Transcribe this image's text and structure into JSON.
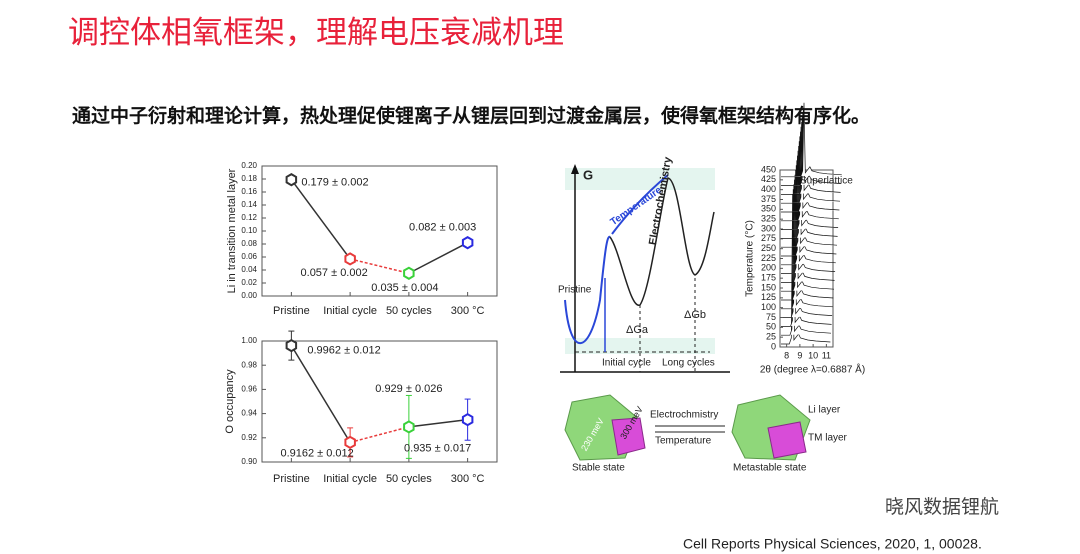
{
  "title": "调控体相氧框架，理解电压衰减机理",
  "subtitle": "通过中子衍射和理论计算，热处理促使锂离子从锂层回到过渡金属层，使得氧框架结构有序化。",
  "chart_data": [
    {
      "type": "line",
      "y_label": "Li in transition metal layer",
      "categories": [
        "Pristine",
        "Initial cycle",
        "50 cycles",
        "300 °C"
      ],
      "values": [
        0.179,
        0.057,
        0.035,
        0.082
      ],
      "errors": [
        0.002,
        0.002,
        0.004,
        0.003
      ],
      "value_labels": [
        "0.179 ± 0.002",
        "0.057 ± 0.002",
        "0.035 ± 0.004",
        "0.082 ± 0.003"
      ],
      "colors": [
        "#333333",
        "#e83b3b",
        "#3ad13a",
        "#2a2ae0"
      ],
      "segment_colors": [
        "#333333",
        "#e83b3b",
        "#333333"
      ],
      "segment_dashed": [
        false,
        true,
        false
      ],
      "ylim": [
        0,
        0.2
      ],
      "yticks": [
        {
          "value": 0,
          "label": "0.00"
        },
        {
          "value": 0.02,
          "label": "0.02"
        },
        {
          "value": 0.04,
          "label": "0.04"
        },
        {
          "value": 0.06,
          "label": "0.06"
        },
        {
          "value": 0.08,
          "label": "0.08"
        },
        {
          "value": 0.1,
          "label": "0.10"
        },
        {
          "value": 0.12,
          "label": "0.12"
        },
        {
          "value": 0.14,
          "label": "0.14"
        },
        {
          "value": 0.16,
          "label": "0.16"
        },
        {
          "value": 0.18,
          "label": "0.18"
        },
        {
          "value": 0.2,
          "label": "0.20"
        }
      ]
    },
    {
      "type": "line",
      "y_label": "O occupancy",
      "categories": [
        "Pristine",
        "Initial cycle",
        "50 cycles",
        "300 °C"
      ],
      "values": [
        0.9962,
        0.9162,
        0.929,
        0.935
      ],
      "errors": [
        0.012,
        0.012,
        0.026,
        0.017
      ],
      "value_labels": [
        "0.9962 ± 0.012",
        "0.9162 ± 0.012",
        "0.929 ± 0.026",
        "0.935 ± 0.017"
      ],
      "colors": [
        "#333333",
        "#e83b3b",
        "#3ad13a",
        "#2a2ae0"
      ],
      "segment_colors": [
        "#333333",
        "#e83b3b",
        "#333333"
      ],
      "segment_dashed": [
        false,
        true,
        false
      ],
      "ylim": [
        0.9,
        1.0
      ],
      "yticks": [
        {
          "value": 0.9,
          "label": "0.90"
        },
        {
          "value": 0.92,
          "label": "0.92"
        },
        {
          "value": 0.94,
          "label": "0.94"
        },
        {
          "value": 0.96,
          "label": "0.96"
        },
        {
          "value": 0.98,
          "label": "0.98"
        },
        {
          "value": 1.0,
          "label": "1.00"
        }
      ]
    },
    {
      "type": "waterfall",
      "y_label": "Temperature (°C)",
      "x_label": "2θ (degree λ=0.6887 Å)",
      "annotation": "Superlattice",
      "ylim": [
        0,
        450
      ],
      "yticks": [
        0,
        25,
        50,
        75,
        100,
        125,
        150,
        175,
        200,
        225,
        250,
        275,
        300,
        325,
        350,
        375,
        400,
        425,
        450
      ],
      "xlim": [
        7.5,
        11.5
      ],
      "xticks": [
        8,
        9,
        10,
        11
      ]
    }
  ],
  "diagram": {
    "axis": "G",
    "temperature": "Temperature",
    "electrochemistry": "Electrochemistry",
    "pristine": "Pristine",
    "dga": "ΔGa",
    "dgb": "ΔGb",
    "initial": "Initial cycle",
    "long": "Long cycles",
    "arrow_top": "Electrochmistry",
    "arrow_bottom": "Temperature",
    "li_layer": "Li layer",
    "tm_layer": "TM layer",
    "stable": "Stable state",
    "metastable": "Metastable state",
    "e1": "230 meV",
    "e2": "300 meV"
  },
  "watermark": "晓风数据锂航",
  "citation": "Cell Reports Physical Sciences, 2020, 1, 00028."
}
